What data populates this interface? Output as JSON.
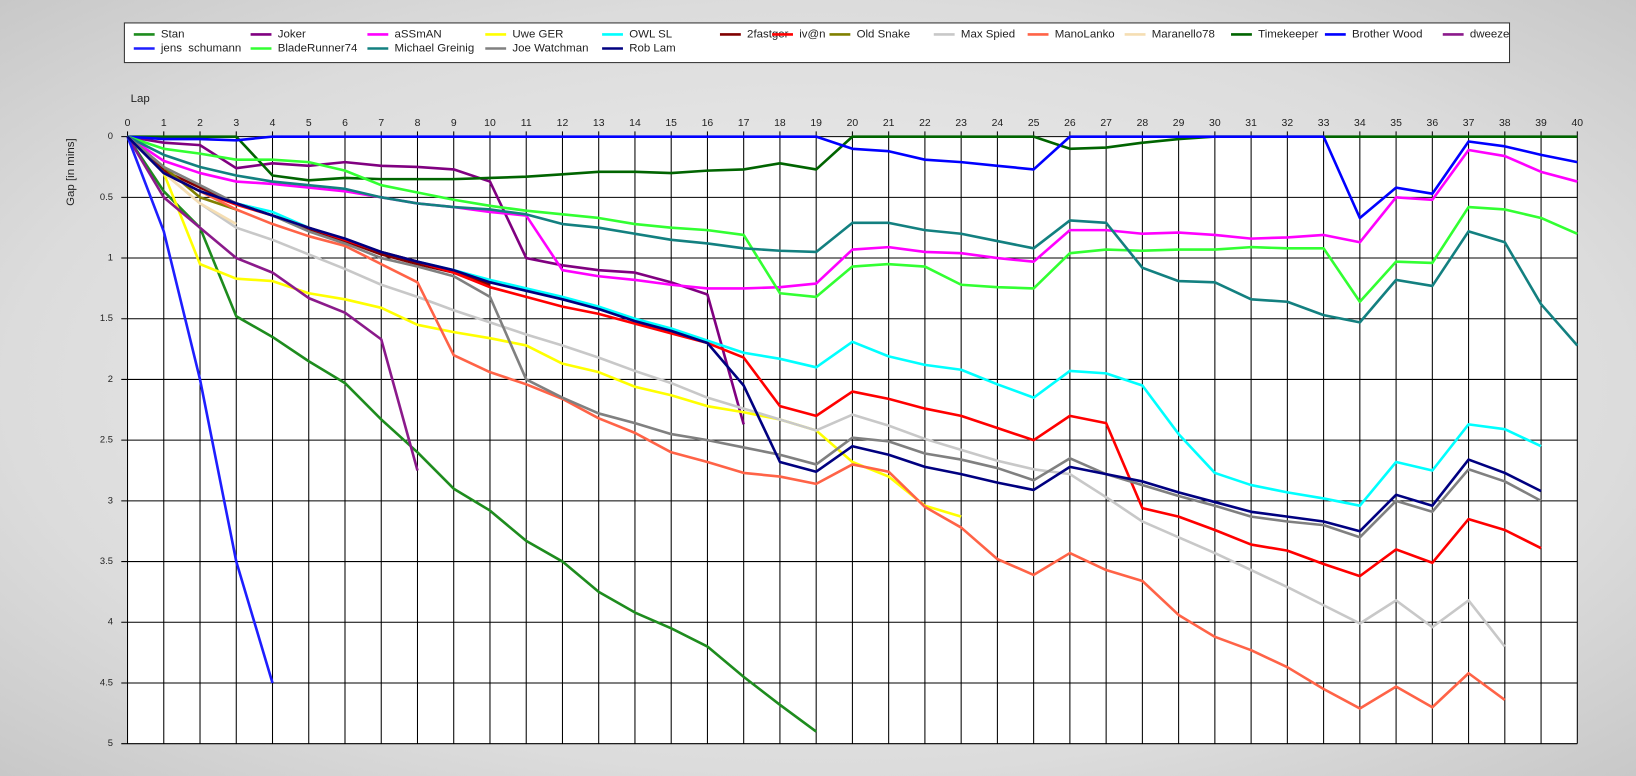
{
  "chart_data": {
    "type": "line",
    "xlabel": "Lap",
    "ylabel": "Gap [in mins]",
    "x": [
      0,
      1,
      2,
      3,
      4,
      5,
      6,
      7,
      8,
      9,
      10,
      11,
      12,
      13,
      14,
      15,
      16,
      17,
      18,
      19,
      20,
      21,
      22,
      23,
      24,
      25,
      26,
      27,
      28,
      29,
      30,
      31,
      32,
      33,
      34,
      35,
      36,
      37,
      38,
      39,
      40
    ],
    "xlim": [
      0,
      40
    ],
    "xticks": [
      0,
      1,
      2,
      3,
      4,
      5,
      6,
      7,
      8,
      9,
      10,
      11,
      12,
      13,
      14,
      15,
      16,
      17,
      18,
      19,
      20,
      21,
      22,
      23,
      24,
      25,
      26,
      27,
      28,
      29,
      30,
      31,
      32,
      33,
      34,
      35,
      36,
      37,
      38,
      39,
      40
    ],
    "ylim": [
      0,
      5
    ],
    "y_reversed": true,
    "yticks": [
      0,
      0.5,
      1,
      1.5,
      2,
      2.5,
      3,
      3.5,
      4,
      4.5,
      5
    ],
    "grid": true,
    "legend": "top",
    "series": [
      {
        "name": "Stan",
        "color": "#1e8c1e",
        "values": [
          0,
          0.45,
          0.75,
          1.48,
          1.65,
          1.85,
          2.03,
          2.33,
          2.6,
          2.9,
          3.08,
          3.33,
          3.5,
          3.75,
          3.92,
          4.05,
          4.2,
          4.45,
          4.68,
          4.9,
          null,
          null,
          null,
          null,
          null,
          null,
          null,
          null,
          null,
          null,
          null,
          null,
          null,
          null,
          null,
          null,
          null,
          null,
          null,
          null,
          null
        ]
      },
      {
        "name": "Joker",
        "color": "#800080",
        "values": [
          0,
          0.05,
          0.07,
          0.26,
          0.22,
          0.24,
          0.21,
          0.24,
          0.25,
          0.27,
          0.37,
          1.0,
          1.06,
          1.1,
          1.12,
          1.2,
          1.3,
          2.37,
          null,
          null,
          null,
          null,
          null,
          null,
          null,
          null,
          null,
          null,
          null,
          null,
          null,
          null,
          null,
          null,
          null,
          null,
          null,
          null,
          null,
          null,
          null
        ]
      },
      {
        "name": "aSSmAN",
        "color": "#ff00ff",
        "values": [
          0,
          0.2,
          0.3,
          0.37,
          0.39,
          0.42,
          0.45,
          0.5,
          0.55,
          0.58,
          0.62,
          0.65,
          1.1,
          1.15,
          1.18,
          1.22,
          1.25,
          1.25,
          1.24,
          1.21,
          0.93,
          0.91,
          0.95,
          0.96,
          1.0,
          1.03,
          0.77,
          0.77,
          0.8,
          0.79,
          0.81,
          0.84,
          0.83,
          0.81,
          0.87,
          0.5,
          0.52,
          0.11,
          0.16,
          0.29,
          0.37
        ]
      },
      {
        "name": "Uwe GER",
        "color": "#ffff00",
        "values": [
          0,
          0.3,
          1.05,
          1.17,
          1.19,
          1.29,
          1.34,
          1.41,
          1.55,
          1.61,
          1.66,
          1.72,
          1.87,
          1.94,
          2.06,
          2.13,
          2.22,
          2.27,
          2.33,
          2.42,
          2.68,
          2.8,
          3.04,
          3.13,
          null,
          null,
          null,
          null,
          null,
          null,
          null,
          null,
          null,
          null,
          null,
          null,
          null,
          null,
          null,
          null,
          null
        ]
      },
      {
        "name": "OWL SL",
        "color": "#00ffff",
        "values": [
          0,
          0.3,
          0.45,
          0.55,
          0.62,
          0.75,
          0.85,
          0.95,
          1.03,
          1.1,
          1.18,
          1.25,
          1.32,
          1.4,
          1.5,
          1.58,
          1.68,
          1.78,
          1.83,
          1.9,
          1.69,
          1.81,
          1.88,
          1.92,
          2.04,
          2.15,
          1.93,
          1.95,
          2.05,
          2.45,
          2.77,
          2.87,
          2.93,
          2.98,
          3.04,
          2.68,
          2.75,
          2.37,
          2.41,
          2.55,
          null
        ]
      },
      {
        "name": "2fastger",
        "color": "#800000",
        "values": [
          0,
          0.28,
          0.42,
          0.55,
          0.65,
          0.76,
          0.86,
          0.97,
          1.05,
          1.12,
          1.22,
          null,
          null,
          null,
          null,
          null,
          null,
          null,
          null,
          null,
          null,
          null,
          null,
          null,
          null,
          null,
          null,
          null,
          null,
          null,
          null,
          null,
          null,
          null,
          null,
          null,
          null,
          null,
          null,
          null,
          null
        ]
      },
      {
        "name": "iv@n",
        "color": "#ff0000",
        "values": [
          0,
          0.3,
          0.45,
          0.56,
          0.65,
          0.75,
          0.85,
          0.95,
          1.03,
          1.12,
          1.24,
          1.32,
          1.4,
          1.46,
          1.54,
          1.62,
          1.7,
          1.82,
          2.22,
          2.3,
          2.1,
          2.16,
          2.24,
          2.3,
          2.4,
          2.5,
          2.3,
          2.36,
          3.06,
          3.13,
          3.24,
          3.36,
          3.41,
          3.52,
          3.62,
          3.4,
          3.51,
          3.15,
          3.24,
          3.39,
          null
        ]
      },
      {
        "name": "Old Snake",
        "color": "#808000",
        "values": [
          0,
          0.25,
          0.5,
          0.6,
          null,
          null,
          null,
          null,
          null,
          null,
          null,
          null,
          null,
          null,
          null,
          null,
          null,
          null,
          null,
          null,
          null,
          null,
          null,
          null,
          null,
          null,
          null,
          null,
          null,
          null,
          null,
          null,
          null,
          null,
          null,
          null,
          null,
          null,
          null,
          null,
          null
        ]
      },
      {
        "name": "Max Spied",
        "color": "#c8c8c8",
        "values": [
          0,
          0.3,
          0.55,
          0.75,
          0.85,
          0.97,
          1.09,
          1.22,
          1.32,
          1.43,
          1.53,
          1.63,
          1.72,
          1.82,
          1.93,
          2.03,
          2.15,
          2.24,
          2.33,
          2.42,
          2.29,
          2.38,
          2.49,
          2.58,
          2.67,
          2.74,
          2.78,
          2.97,
          3.17,
          3.3,
          3.43,
          3.57,
          3.71,
          3.86,
          4.01,
          3.82,
          4.04,
          3.82,
          4.2,
          null,
          null
        ]
      },
      {
        "name": "ManoLanko",
        "color": "#ff6347",
        "values": [
          0,
          0.3,
          0.45,
          0.6,
          0.72,
          0.82,
          0.9,
          1.05,
          1.2,
          1.8,
          1.94,
          2.04,
          2.16,
          2.32,
          2.44,
          2.6,
          2.68,
          2.77,
          2.8,
          2.86,
          2.7,
          2.76,
          3.05,
          3.22,
          3.48,
          3.61,
          3.43,
          3.57,
          3.66,
          3.94,
          4.12,
          4.23,
          4.37,
          4.55,
          4.71,
          4.53,
          4.7,
          4.42,
          4.64,
          null,
          null
        ]
      },
      {
        "name": "Maranello78",
        "color": "#f5deb3",
        "values": [
          0,
          0.3,
          0.55,
          0.72,
          null,
          null,
          null,
          null,
          null,
          null,
          null,
          null,
          null,
          null,
          null,
          null,
          null,
          null,
          null,
          null,
          null,
          null,
          null,
          null,
          null,
          null,
          null,
          null,
          null,
          null,
          null,
          null,
          null,
          null,
          null,
          null,
          null,
          null,
          null,
          null,
          null
        ]
      },
      {
        "name": "Timekeeper",
        "color": "#006400",
        "values": [
          0,
          0,
          0,
          0,
          0.32,
          0.36,
          0.34,
          0.35,
          0.35,
          0.35,
          0.34,
          0.33,
          0.31,
          0.29,
          0.29,
          0.3,
          0.28,
          0.27,
          0.22,
          0.27,
          0,
          0,
          0,
          0,
          0,
          0,
          0.1,
          0.09,
          0.05,
          0.02,
          0,
          0,
          0,
          0,
          0,
          0,
          0,
          0,
          0,
          0,
          0
        ]
      },
      {
        "name": "Brother Wood",
        "color": "#0000ff",
        "values": [
          0,
          0.02,
          0.02,
          0.03,
          0,
          0,
          0,
          0,
          0,
          0,
          0,
          0,
          0,
          0,
          0,
          0,
          0,
          0,
          0,
          0,
          0.1,
          0.12,
          0.19,
          0.21,
          0.24,
          0.27,
          0,
          0,
          0,
          0,
          0,
          0,
          0,
          0,
          0.67,
          0.42,
          0.47,
          0.04,
          0.08,
          0.15,
          0.21
        ]
      },
      {
        "name": "dweeze",
        "color": "#8b1a8b",
        "values": [
          0,
          0.5,
          0.75,
          1.0,
          1.12,
          1.33,
          1.45,
          1.67,
          2.75,
          null,
          null,
          null,
          null,
          null,
          null,
          null,
          null,
          null,
          null,
          null,
          null,
          null,
          null,
          null,
          null,
          null,
          null,
          null,
          null,
          null,
          null,
          null,
          null,
          null,
          null,
          null,
          null,
          null,
          null,
          null,
          null
        ]
      },
      {
        "name": "jens  schumann",
        "color": "#1e1eff",
        "values": [
          0,
          0.78,
          2.0,
          3.5,
          4.5,
          null,
          null,
          null,
          null,
          null,
          null,
          null,
          null,
          null,
          null,
          null,
          null,
          null,
          null,
          null,
          null,
          null,
          null,
          null,
          null,
          null,
          null,
          null,
          null,
          null,
          null,
          null,
          null,
          null,
          null,
          null,
          null,
          null,
          null,
          null,
          null
        ]
      },
      {
        "name": "BladeRunner74",
        "color": "#32ff32",
        "values": [
          0,
          0.1,
          0.14,
          0.19,
          0.19,
          0.21,
          0.28,
          0.4,
          0.46,
          0.52,
          0.57,
          0.61,
          0.64,
          0.67,
          0.72,
          0.75,
          0.77,
          0.81,
          1.29,
          1.32,
          1.07,
          1.05,
          1.07,
          1.22,
          1.24,
          1.25,
          0.96,
          0.93,
          0.94,
          0.93,
          0.93,
          0.91,
          0.92,
          0.92,
          1.36,
          1.03,
          1.04,
          0.58,
          0.6,
          0.67,
          0.8
        ]
      },
      {
        "name": "Michael Greinig",
        "color": "#138080",
        "values": [
          0,
          0.15,
          0.25,
          0.32,
          0.37,
          0.4,
          0.43,
          0.5,
          0.55,
          0.58,
          0.6,
          0.64,
          0.72,
          0.75,
          0.8,
          0.85,
          0.88,
          0.92,
          0.94,
          0.95,
          0.71,
          0.71,
          0.77,
          0.8,
          0.86,
          0.92,
          0.69,
          0.71,
          1.08,
          1.19,
          1.2,
          1.34,
          1.36,
          1.47,
          1.53,
          1.18,
          1.23,
          0.78,
          0.87,
          1.38,
          1.72
        ]
      },
      {
        "name": "Joe Watchman",
        "color": "#808080",
        "values": [
          0,
          0.25,
          0.4,
          0.55,
          0.65,
          0.78,
          0.88,
          1.0,
          1.07,
          1.15,
          1.32,
          2.0,
          2.15,
          2.28,
          2.36,
          2.45,
          2.5,
          2.56,
          2.62,
          2.7,
          2.48,
          2.51,
          2.61,
          2.66,
          2.73,
          2.83,
          2.65,
          2.78,
          2.87,
          2.96,
          3.04,
          3.13,
          3.17,
          3.2,
          3.3,
          3.0,
          3.09,
          2.74,
          2.84,
          3.0,
          null
        ]
      },
      {
        "name": "Rob Lam",
        "color": "#000080",
        "values": [
          0,
          0.3,
          0.45,
          0.55,
          0.65,
          0.75,
          0.84,
          0.95,
          1.03,
          1.1,
          1.2,
          1.27,
          1.34,
          1.42,
          1.52,
          1.6,
          1.7,
          2.05,
          2.68,
          2.76,
          2.55,
          2.62,
          2.72,
          2.78,
          2.85,
          2.91,
          2.72,
          2.78,
          2.84,
          2.93,
          3.01,
          3.09,
          3.13,
          3.17,
          3.25,
          2.95,
          3.04,
          2.66,
          2.77,
          2.92,
          null
        ]
      }
    ]
  }
}
